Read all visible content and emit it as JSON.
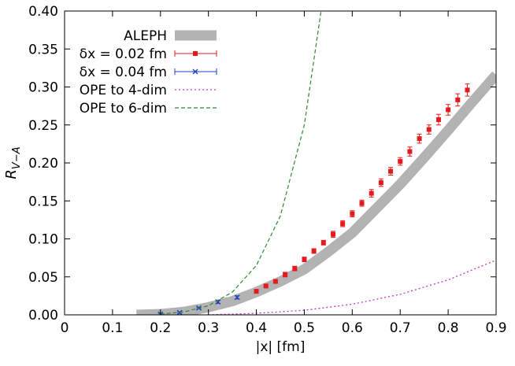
{
  "chart_data": {
    "type": "line",
    "xlabel": "|x| [fm]",
    "ylabel": "R",
    "ylabel_sub": "V−A",
    "xlim": [
      0,
      0.9
    ],
    "ylim": [
      0,
      0.4
    ],
    "xticks": [
      0,
      0.1,
      0.2,
      0.3,
      0.4,
      0.5,
      0.6,
      0.7,
      0.8,
      0.9
    ],
    "yticks": [
      {
        "value": 0,
        "label": "0.00"
      },
      {
        "value": 0.05,
        "label": "0.05"
      },
      {
        "value": 0.1,
        "label": "0.10"
      },
      {
        "value": 0.15,
        "label": "0.15"
      },
      {
        "value": 0.2,
        "label": "0.20"
      },
      {
        "value": 0.25,
        "label": "0.25"
      },
      {
        "value": 0.3,
        "label": "0.30"
      },
      {
        "value": 0.35,
        "label": "0.35"
      },
      {
        "value": 0.4,
        "label": "0.40"
      }
    ],
    "legend": "top-left",
    "series": [
      {
        "name": "ALEPH",
        "style": "band",
        "color": "#b3b3b3",
        "x": [
          0.15,
          0.2,
          0.25,
          0.3,
          0.35,
          0.4,
          0.45,
          0.5,
          0.55,
          0.6,
          0.65,
          0.7,
          0.75,
          0.8,
          0.85,
          0.9
        ],
        "values": [
          0,
          0.001,
          0.004,
          0.01,
          0.018,
          0.03,
          0.044,
          0.06,
          0.083,
          0.108,
          0.14,
          0.172,
          0.207,
          0.243,
          0.28,
          0.316
        ]
      },
      {
        "name": "δx = 0.02 fm",
        "style": "errorbar",
        "marker": "square",
        "color": "#e41a1c",
        "x": [
          0.4,
          0.42,
          0.44,
          0.46,
          0.48,
          0.5,
          0.52,
          0.54,
          0.56,
          0.58,
          0.6,
          0.62,
          0.64,
          0.66,
          0.68,
          0.7,
          0.72,
          0.74,
          0.76,
          0.78,
          0.8,
          0.82,
          0.84
        ],
        "values": [
          0.031,
          0.038,
          0.044,
          0.053,
          0.061,
          0.073,
          0.084,
          0.095,
          0.106,
          0.12,
          0.133,
          0.147,
          0.16,
          0.174,
          0.189,
          0.202,
          0.215,
          0.232,
          0.244,
          0.257,
          0.27,
          0.283,
          0.296
        ],
        "errors": [
          0.002,
          0.002,
          0.002,
          0.003,
          0.003,
          0.003,
          0.003,
          0.003,
          0.004,
          0.004,
          0.004,
          0.004,
          0.005,
          0.005,
          0.005,
          0.005,
          0.006,
          0.006,
          0.006,
          0.007,
          0.007,
          0.008,
          0.008
        ]
      },
      {
        "name": "δx = 0.04 fm",
        "style": "errorbar",
        "marker": "cross",
        "color": "#1f3fbf",
        "x": [
          0.2,
          0.24,
          0.28,
          0.32,
          0.36
        ],
        "values": [
          0.001,
          0.003,
          0.009,
          0.017,
          0.023
        ],
        "errors": [
          0.001,
          0.001,
          0.001,
          0.002,
          0.002
        ]
      },
      {
        "name": "OPE to 4-dim",
        "style": "dotted",
        "color": "#cc33cc",
        "x": [
          0.3,
          0.4,
          0.5,
          0.6,
          0.7,
          0.8,
          0.9
        ],
        "values": [
          0,
          0.002,
          0.006,
          0.014,
          0.027,
          0.046,
          0.072
        ]
      },
      {
        "name": "OPE to 6-dim",
        "style": "dashed",
        "color": "#2e8b2e",
        "x": [
          0.2,
          0.25,
          0.3,
          0.35,
          0.4,
          0.45,
          0.5,
          0.535
        ],
        "values": [
          0.001,
          0.004,
          0.012,
          0.03,
          0.065,
          0.13,
          0.25,
          0.4
        ]
      }
    ]
  }
}
